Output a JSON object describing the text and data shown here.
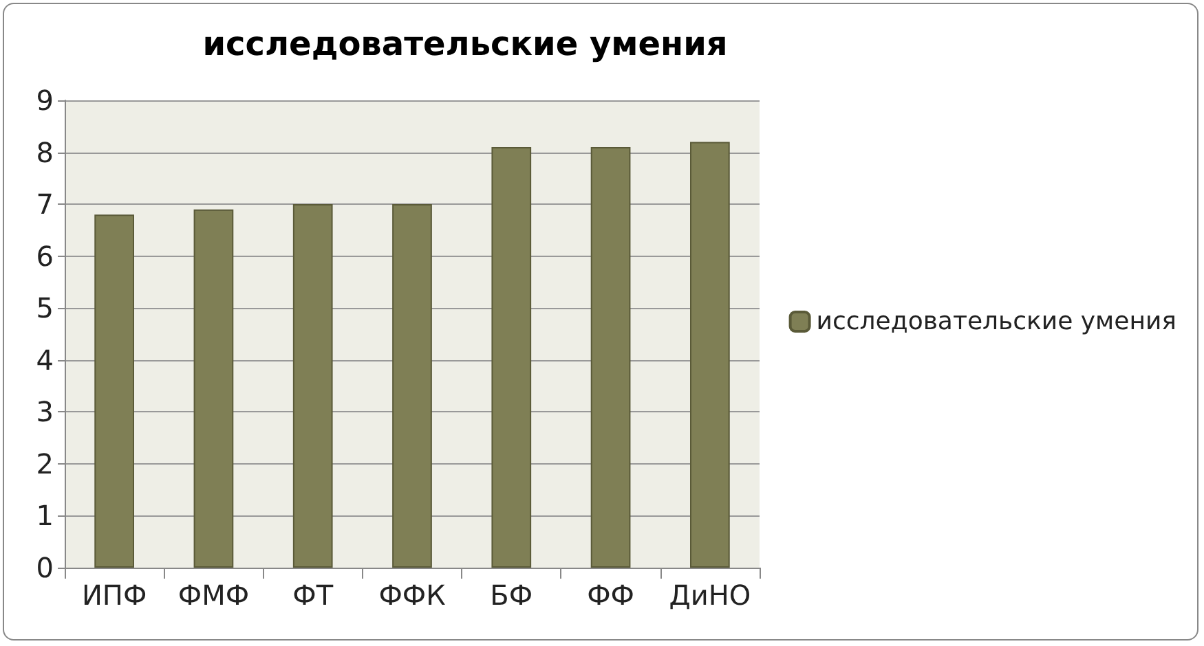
{
  "chart_data": {
    "type": "bar",
    "title": "исследовательские умения",
    "categories": [
      "ИПФ",
      "ФМФ",
      "ФТ",
      "ФФК",
      "БФ",
      "ФФ",
      "ДиНО"
    ],
    "series": [
      {
        "name": "исследовательские умения",
        "color": "#7f7f55",
        "values": [
          6.8,
          6.9,
          7,
          7,
          8.1,
          8.1,
          8.2
        ]
      }
    ],
    "ylim": [
      0,
      9
    ],
    "yticks": [
      0,
      1,
      2,
      3,
      4,
      5,
      6,
      7,
      8,
      9
    ],
    "grid": "y",
    "legend": "right"
  }
}
